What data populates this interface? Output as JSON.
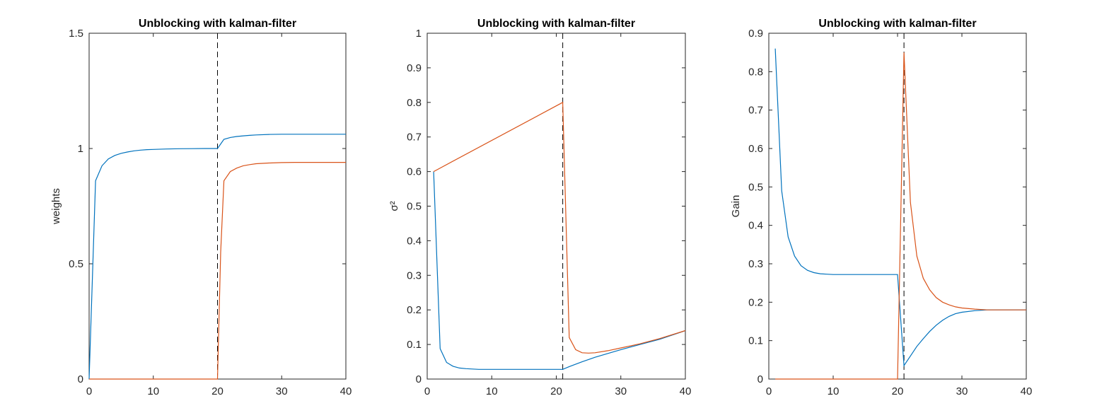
{
  "colors": {
    "series1": "#0072BD",
    "series2": "#D95319",
    "axis": "#262626",
    "marker": "#000000"
  },
  "chart_data": [
    {
      "type": "line",
      "title": "Unblocking with kalman-filter",
      "xlabel": "",
      "ylabel": "weights",
      "xlim": [
        0,
        40
      ],
      "ylim": [
        0,
        1.5
      ],
      "xticks": [
        "0",
        "10",
        "20",
        "30",
        "40"
      ],
      "yticks": [
        "0",
        "0.5",
        "1",
        "1.5"
      ],
      "ytick_values": [
        0,
        0.5,
        1,
        1.5
      ],
      "vline": 20,
      "series": [
        {
          "x": [
            0,
            1,
            2,
            3,
            4,
            5,
            6,
            7,
            8,
            9,
            10,
            12,
            14,
            16,
            18,
            20,
            21,
            22,
            23,
            24,
            25,
            26,
            28,
            30,
            32,
            35,
            38,
            40
          ],
          "values": [
            0,
            0.86,
            0.925,
            0.955,
            0.97,
            0.979,
            0.985,
            0.99,
            0.993,
            0.995,
            0.996,
            0.998,
            0.999,
            0.9995,
            1.0,
            1.0,
            1.04,
            1.048,
            1.052,
            1.055,
            1.057,
            1.059,
            1.061,
            1.062,
            1.062,
            1.062,
            1.062,
            1.062
          ]
        },
        {
          "x": [
            0,
            5,
            10,
            15,
            19.9,
            20,
            20.5,
            21,
            22,
            23,
            24,
            25,
            26,
            28,
            30,
            32,
            35,
            38,
            40
          ],
          "values": [
            0,
            0,
            0,
            0,
            0,
            0.0,
            0.55,
            0.86,
            0.9,
            0.915,
            0.925,
            0.93,
            0.934,
            0.937,
            0.939,
            0.94,
            0.94,
            0.94,
            0.94
          ]
        }
      ]
    },
    {
      "type": "line",
      "title": "Unblocking with kalman-filter",
      "xlabel": "",
      "ylabel": "σ²",
      "xlim": [
        0,
        40
      ],
      "ylim": [
        0,
        1
      ],
      "xticks": [
        "0",
        "10",
        "20",
        "30",
        "40"
      ],
      "yticks": [
        "0",
        "0.1",
        "0.2",
        "0.3",
        "0.4",
        "0.5",
        "0.6",
        "0.7",
        "0.8",
        "0.9",
        "1"
      ],
      "ytick_values": [
        0,
        0.1,
        0.2,
        0.3,
        0.4,
        0.5,
        0.6,
        0.7,
        0.8,
        0.9,
        1
      ],
      "vline": 21,
      "series": [
        {
          "x": [
            1,
            2,
            3,
            4,
            5,
            6,
            7,
            8,
            10,
            12,
            14,
            16,
            18,
            20,
            21,
            22,
            24,
            26,
            28,
            30,
            33,
            36,
            40
          ],
          "values": [
            0.6,
            0.088,
            0.048,
            0.037,
            0.032,
            0.03,
            0.029,
            0.028,
            0.028,
            0.028,
            0.028,
            0.028,
            0.028,
            0.028,
            0.028,
            0.036,
            0.05,
            0.063,
            0.074,
            0.085,
            0.1,
            0.115,
            0.14
          ]
        },
        {
          "x": [
            1,
            21,
            22,
            23,
            24,
            25,
            26,
            28,
            30,
            33,
            36,
            40
          ],
          "values": [
            0.6,
            0.8,
            0.12,
            0.085,
            0.076,
            0.075,
            0.076,
            0.082,
            0.09,
            0.102,
            0.117,
            0.14
          ]
        }
      ]
    },
    {
      "type": "line",
      "title": "Unblocking with kalman-filter",
      "xlabel": "",
      "ylabel": "Gain",
      "xlim": [
        0,
        40
      ],
      "ylim": [
        0,
        0.9
      ],
      "xticks": [
        "0",
        "10",
        "20",
        "30",
        "40"
      ],
      "yticks": [
        "0",
        "0.1",
        "0.2",
        "0.3",
        "0.4",
        "0.5",
        "0.6",
        "0.7",
        "0.8",
        "0.9"
      ],
      "ytick_values": [
        0,
        0.1,
        0.2,
        0.3,
        0.4,
        0.5,
        0.6,
        0.7,
        0.8,
        0.9
      ],
      "vline": 21,
      "series": [
        {
          "x": [
            1,
            2,
            3,
            4,
            5,
            6,
            7,
            8,
            9,
            10,
            12,
            14,
            16,
            18,
            20,
            21,
            22,
            23,
            24,
            25,
            26,
            27,
            28,
            29,
            30,
            32,
            34,
            36,
            40
          ],
          "values": [
            0.86,
            0.49,
            0.37,
            0.32,
            0.295,
            0.283,
            0.277,
            0.274,
            0.273,
            0.272,
            0.272,
            0.272,
            0.272,
            0.272,
            0.272,
            0.035,
            0.06,
            0.085,
            0.105,
            0.124,
            0.14,
            0.153,
            0.163,
            0.17,
            0.174,
            0.178,
            0.18,
            0.18,
            0.18
          ]
        },
        {
          "x": [
            1,
            5,
            10,
            15,
            19.9,
            20,
            21,
            22,
            23,
            24,
            25,
            26,
            27,
            28,
            29,
            30,
            32,
            34,
            36,
            40
          ],
          "values": [
            0,
            0,
            0,
            0,
            0,
            0,
            0.85,
            0.46,
            0.32,
            0.262,
            0.232,
            0.212,
            0.2,
            0.193,
            0.188,
            0.185,
            0.182,
            0.18,
            0.18,
            0.18
          ]
        }
      ]
    }
  ]
}
